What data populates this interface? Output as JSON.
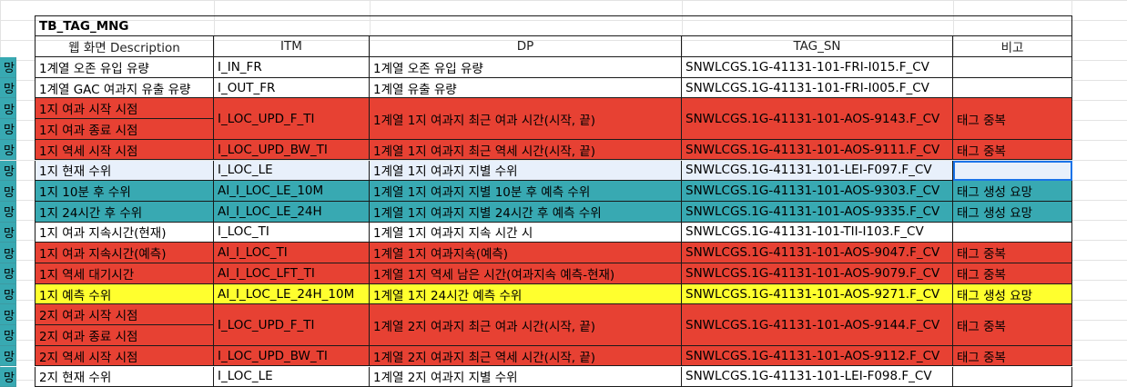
{
  "sheet": {
    "title": "TB_TAG_MNG",
    "headers": [
      "웹 화면 Description",
      "ITM",
      "DP",
      "TAG_SN",
      "비고"
    ],
    "left_col_text": "망",
    "colors": {
      "red": "#e74133",
      "teal": "#38a9b2",
      "yellow": "#ffff2e",
      "selected": "#e8f0fb",
      "selection_border": "#1a73e8"
    },
    "rows": [
      {
        "color": "white",
        "desc": "1계열 오존 유입 유량",
        "itm": "I_IN_FR",
        "dp": "1계열 오존 유입 유량",
        "tag": "SNWLCGS.1G-41131-101-FRI-I015.F_CV",
        "note": ""
      },
      {
        "color": "white",
        "desc": "1계열 GAC 여과지 유출 유량",
        "itm": "I_OUT_FR",
        "dp": "1계열 유출 유량",
        "tag": "SNWLCGS.1G-41131-101-FRI-I005.F_CV",
        "note": ""
      },
      {
        "color": "red",
        "desc": "1지 여과 시작 시점",
        "desc2": "1지 여과 종료 시점",
        "itm": "I_LOC_UPD_F_TI",
        "dp": "1계열 1지 여과지 최근 여과 시간(시작, 끝)",
        "tag": "SNWLCGS.1G-41131-101-AOS-9143.F_CV",
        "note": "태그 중복"
      },
      {
        "color": "red",
        "desc": "1지 역세 시작 시점",
        "itm": "I_LOC_UPD_BW_TI",
        "dp": "1계열 1지 여과지 최근 역세 시간(시작, 끝)",
        "tag": "SNWLCGS.1G-41131-101-AOS-9111.F_CV",
        "note": "태그 중복"
      },
      {
        "color": "sel",
        "desc": "1지 현재 수위",
        "itm": "I_LOC_LE",
        "dp": "1계열 1지 여과지 지별 수위",
        "tag": "SNWLCGS.1G-41131-101-LEI-F097.F_CV",
        "note": ""
      },
      {
        "color": "teal",
        "desc": "1지 10분 후 수위",
        "itm": "AI_I_LOC_LE_10M",
        "dp": "1계열 1지 여과지 지별 10분 후 예측 수위",
        "tag": "SNWLCGS.1G-41131-101-AOS-9303.F_CV",
        "note": "태그 생성 요망"
      },
      {
        "color": "teal",
        "desc": "1지 24시간 후 수위",
        "itm": "AI_I_LOC_LE_24H",
        "dp": "1계열 1지 여과지 지별 24시간 후 예측 수위",
        "tag": "SNWLCGS.1G-41131-101-AOS-9335.F_CV",
        "note": "태그 생성 요망"
      },
      {
        "color": "white",
        "desc": "1지 여과 지속시간(현재)",
        "itm": "I_LOC_TI",
        "dp": "1계열 1지 여과지 지속 시간 시",
        "tag": "SNWLCGS.1G-41131-101-TII-I103.F_CV",
        "note": ""
      },
      {
        "color": "red",
        "desc": "1지 여과 지속시간(예측)",
        "itm": "AI_I_LOC_TI",
        "dp": "1계열 1지 여과지속(예측)",
        "tag": "SNWLCGS.1G-41131-101-AOS-9047.F_CV",
        "note": "태그 중복"
      },
      {
        "color": "red",
        "desc": "1지 역세 대기시간",
        "itm": "AI_I_LOC_LFT_TI",
        "dp": "1계열 1지 역세 남은 시간(여과지속 예측-현재)",
        "tag": "SNWLCGS.1G-41131-101-AOS-9079.F_CV",
        "note": "태그 중복"
      },
      {
        "color": "yellow",
        "desc": "1지 예측 수위",
        "itm": "AI_I_LOC_LE_24H_10M",
        "dp": "1계열 1지 24시간 예측 수위",
        "tag": "SNWLCGS.1G-41131-101-AOS-9271.F_CV",
        "note": "태그 생성 요망"
      },
      {
        "color": "red",
        "desc": "2지 여과 시작 시점",
        "desc2": "2지 여과 종료 시점",
        "itm": "I_LOC_UPD_F_TI",
        "dp": "1계열 2지 여과지 최근 여과 시간(시작, 끝)",
        "tag": "SNWLCGS.1G-41131-101-AOS-9144.F_CV",
        "note": "태그 중복"
      },
      {
        "color": "red",
        "desc": "2지 역세 시작 시점",
        "itm": "I_LOC_UPD_BW_TI",
        "dp": "1계열 2지 여과지 최근 역세 시간(시작, 끝)",
        "tag": "SNWLCGS.1G-41131-101-AOS-9112.F_CV",
        "note": "태그 중복"
      },
      {
        "color": "white",
        "desc": "2지 현재 수위",
        "itm": "I_LOC_LE",
        "dp": "1계열 2지 여과지 지별 수위",
        "tag": "SNWLCGS.1G-41131-101-LEI-F098.F_CV",
        "note": ""
      }
    ]
  }
}
